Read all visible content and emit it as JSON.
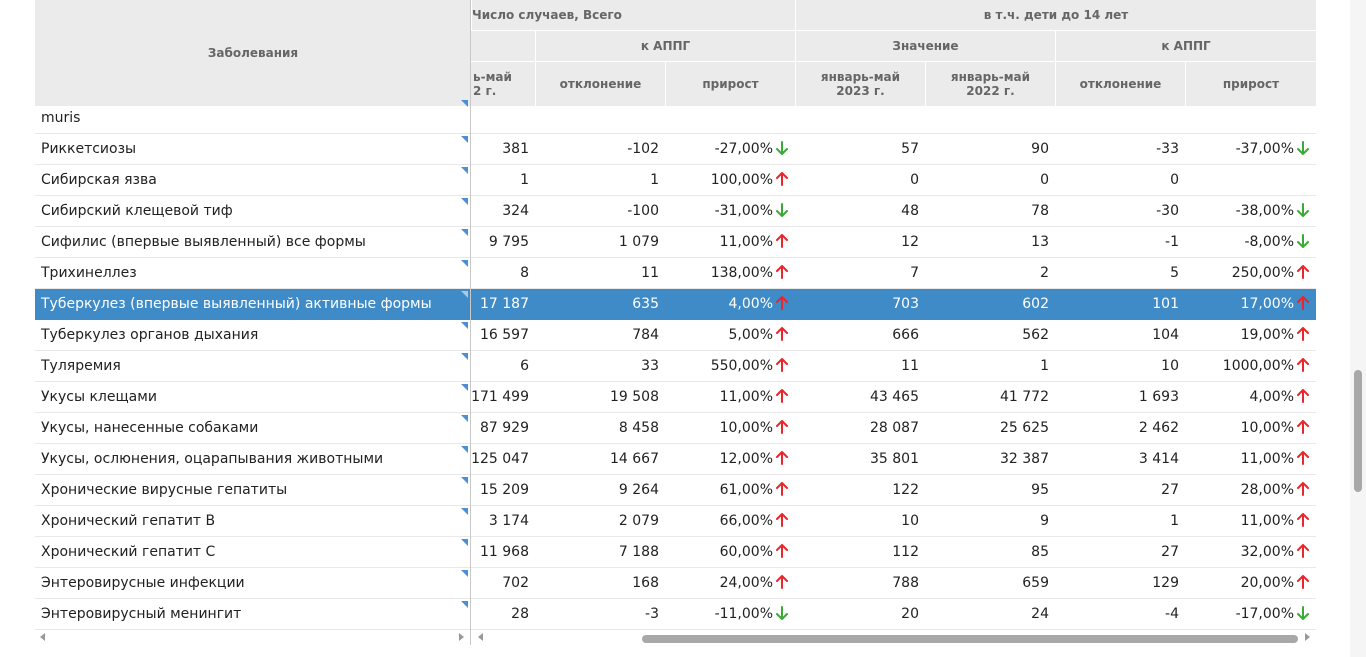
{
  "header": {
    "diseases": "Заболевания",
    "total_cases_partial": "Число случаев, Всего",
    "children_under14": "в т.ч. дети до 14 лет",
    "k_appg_1": "к АППГ",
    "value": "Значение",
    "k_appg_2": "к АППГ",
    "jan_may_2022_partial_1": "ь-май",
    "jan_may_2022_partial_2": "2 г.",
    "deviation_1": "отклонение",
    "growth_1": "прирост",
    "jan_may_2023_1": "январь-май",
    "jan_may_2023_2": "2023 г.",
    "jan_may_2022_1": "январь-май",
    "jan_may_2022_2": "2022 г.",
    "deviation_2": "отклонение",
    "growth_2": "прирост"
  },
  "partial_row": {
    "name": "muris"
  },
  "rows": [
    {
      "name": "Риккетсиозы",
      "c1": "381",
      "c2": "-102",
      "c3": "-27,00%",
      "d1": "down",
      "c4": "57",
      "c5": "90",
      "c6": "-33",
      "c7": "-37,00%",
      "d2": "down"
    },
    {
      "name": "Сибирская язва",
      "c1": "1",
      "c2": "1",
      "c3": "100,00%",
      "d1": "up",
      "c4": "0",
      "c5": "0",
      "c6": "0",
      "c7": "",
      "d2": "none"
    },
    {
      "name": "Сибирский клещевой тиф",
      "c1": "324",
      "c2": "-100",
      "c3": "-31,00%",
      "d1": "down",
      "c4": "48",
      "c5": "78",
      "c6": "-30",
      "c7": "-38,00%",
      "d2": "down"
    },
    {
      "name": "Сифилис (впервые выявленный) все формы",
      "c1": "9 795",
      "c2": "1 079",
      "c3": "11,00%",
      "d1": "up",
      "c4": "12",
      "c5": "13",
      "c6": "-1",
      "c7": "-8,00%",
      "d2": "down"
    },
    {
      "name": "Трихинеллез",
      "c1": "8",
      "c2": "11",
      "c3": "138,00%",
      "d1": "up",
      "c4": "7",
      "c5": "2",
      "c6": "5",
      "c7": "250,00%",
      "d2": "up"
    },
    {
      "name": "Туберкулез (впервые выявленный) активные формы",
      "c1": "17 187",
      "c2": "635",
      "c3": "4,00%",
      "d1": "up",
      "c4": "703",
      "c5": "602",
      "c6": "101",
      "c7": "17,00%",
      "d2": "up",
      "selected": true
    },
    {
      "name": "Туберкулез органов дыхания",
      "c1": "16 597",
      "c2": "784",
      "c3": "5,00%",
      "d1": "up",
      "c4": "666",
      "c5": "562",
      "c6": "104",
      "c7": "19,00%",
      "d2": "up"
    },
    {
      "name": "Туляремия",
      "c1": "6",
      "c2": "33",
      "c3": "550,00%",
      "d1": "up",
      "c4": "11",
      "c5": "1",
      "c6": "10",
      "c7": "1000,00%",
      "d2": "up"
    },
    {
      "name": "Укусы клещами",
      "c1": "171 499",
      "c2": "19 508",
      "c3": "11,00%",
      "d1": "up",
      "c4": "43 465",
      "c5": "41 772",
      "c6": "1 693",
      "c7": "4,00%",
      "d2": "up"
    },
    {
      "name": "Укусы, нанесенные собаками",
      "c1": "87 929",
      "c2": "8 458",
      "c3": "10,00%",
      "d1": "up",
      "c4": "28 087",
      "c5": "25 625",
      "c6": "2 462",
      "c7": "10,00%",
      "d2": "up"
    },
    {
      "name": "Укусы, ослюнения, оцарапывания животными",
      "c1": "125 047",
      "c2": "14 667",
      "c3": "12,00%",
      "d1": "up",
      "c4": "35 801",
      "c5": "32 387",
      "c6": "3 414",
      "c7": "11,00%",
      "d2": "up"
    },
    {
      "name": "Хронические вирусные гепатиты",
      "c1": "15 209",
      "c2": "9 264",
      "c3": "61,00%",
      "d1": "up",
      "c4": "122",
      "c5": "95",
      "c6": "27",
      "c7": "28,00%",
      "d2": "up"
    },
    {
      "name": "Хронический гепатит В",
      "c1": "3 174",
      "c2": "2 079",
      "c3": "66,00%",
      "d1": "up",
      "c4": "10",
      "c5": "9",
      "c6": "1",
      "c7": "11,00%",
      "d2": "up"
    },
    {
      "name": "Хронический гепатит С",
      "c1": "11 968",
      "c2": "7 188",
      "c3": "60,00%",
      "d1": "up",
      "c4": "112",
      "c5": "85",
      "c6": "27",
      "c7": "32,00%",
      "d2": "up"
    },
    {
      "name": "Энтеровирусные инфекции",
      "c1": "702",
      "c2": "168",
      "c3": "24,00%",
      "d1": "up",
      "c4": "788",
      "c5": "659",
      "c6": "129",
      "c7": "20,00%",
      "d2": "up"
    },
    {
      "name": "Энтеровирусный менингит",
      "c1": "28",
      "c2": "-3",
      "c3": "-11,00%",
      "d1": "down",
      "c4": "20",
      "c5": "24",
      "c6": "-4",
      "c7": "-17,00%",
      "d2": "down"
    }
  ],
  "colors": {
    "up": "#e8262b",
    "down": "#3aa935",
    "selected_row": "#3f8bc8",
    "header_bg": "#ebebeb"
  },
  "icons": {
    "up": "arrow-up-icon",
    "down": "arrow-down-icon",
    "note": "note-corner-icon"
  }
}
